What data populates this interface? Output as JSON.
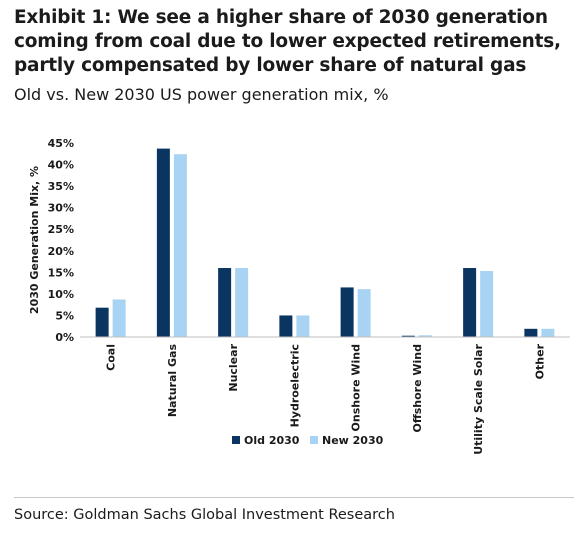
{
  "title": "Exhibit 1: We see a higher share of 2030 generation coming from coal due to lower expected retirements, partly compensated by lower share of natural gas",
  "subtitle": "Old vs. New 2030 US power generation mix, %",
  "source": "Source: Goldman Sachs Global Investment Research",
  "colors": {
    "old": "#0b3561",
    "new": "#a9d3f2",
    "grid": "#d9d9d9",
    "axis": "#595959"
  },
  "chart_data": {
    "type": "bar",
    "categories": [
      "Coal",
      "Natural Gas",
      "Nuclear",
      "Hydroelectric",
      "Onshore Wind",
      "Offshore Wind",
      "Utility Scale Solar",
      "Other"
    ],
    "series": [
      {
        "name": "Old 2030",
        "values": [
          6.8,
          43.7,
          16.0,
          5.0,
          11.5,
          0.3,
          16.0,
          1.9
        ]
      },
      {
        "name": "New 2030",
        "values": [
          8.7,
          42.4,
          16.0,
          5.0,
          11.1,
          0.4,
          15.3,
          1.9
        ]
      }
    ],
    "ylabel": "2030 Generation Mix, %",
    "yticks": [
      "0%",
      "5%",
      "10%",
      "15%",
      "20%",
      "25%",
      "30%",
      "35%",
      "40%",
      "45%"
    ],
    "ylim": [
      0,
      45
    ],
    "grid": false,
    "legend": "bottom"
  }
}
